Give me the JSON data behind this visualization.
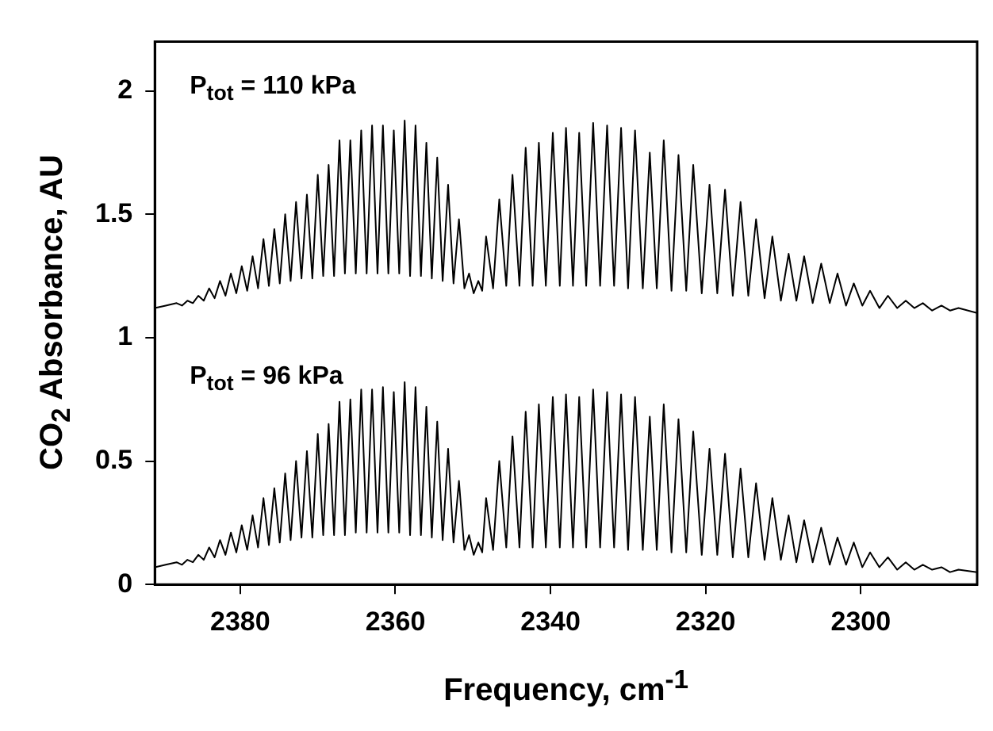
{
  "chart_data": {
    "type": "line",
    "xlabel": "Frequency, cm$^{-1}$",
    "ylabel": "CO$_{2}$ Absorbance, AU",
    "annotations": [
      "P$_{tot}$ = 110 kPa",
      "P$_{tot}$ = 96 kPa"
    ],
    "xlim": [
      2391,
      2285
    ],
    "xticks": [
      2380,
      2360,
      2340,
      2320,
      2300
    ],
    "ylim": [
      0,
      2.2
    ],
    "yticks": [
      0,
      0.5,
      1,
      1.5,
      2
    ],
    "legend": false,
    "x": [
      2391,
      2389.6,
      2388.2,
      2387.5,
      2386.8,
      2386.1,
      2385.4,
      2384.7,
      2384.0,
      2383.3,
      2382.6,
      2381.9,
      2381.2,
      2380.5,
      2379.8,
      2379.1,
      2378.4,
      2377.7,
      2377.0,
      2376.3,
      2375.6,
      2374.9,
      2374.2,
      2373.5,
      2372.8,
      2372.1,
      2371.4,
      2370.7,
      2370.0,
      2369.3,
      2368.6,
      2367.9,
      2367.2,
      2366.5,
      2365.8,
      2365.1,
      2364.4,
      2363.7,
      2363.0,
      2362.3,
      2361.6,
      2360.9,
      2360.2,
      2359.5,
      2358.8,
      2358.1,
      2357.4,
      2356.7,
      2356.0,
      2355.3,
      2354.6,
      2353.9,
      2353.2,
      2352.5,
      2351.8,
      2351.1,
      2350.5,
      2349.9,
      2349.3,
      2348.8,
      2348.3,
      2347.4,
      2346.6,
      2345.7,
      2344.9,
      2344.0,
      2343.2,
      2342.3,
      2341.5,
      2340.6,
      2339.7,
      2338.8,
      2338.0,
      2337.1,
      2336.3,
      2335.4,
      2334.5,
      2333.6,
      2332.7,
      2331.8,
      2330.9,
      2330.0,
      2329.1,
      2328.1,
      2327.2,
      2326.3,
      2325.4,
      2324.4,
      2323.5,
      2322.5,
      2321.6,
      2320.5,
      2319.5,
      2318.5,
      2317.5,
      2316.5,
      2315.5,
      2314.5,
      2313.5,
      2312.4,
      2311.4,
      2310.3,
      2309.3,
      2308.3,
      2307.3,
      2306.2,
      2305.1,
      2304.0,
      2303.0,
      2301.9,
      2300.9,
      2299.8,
      2298.8,
      2297.6,
      2296.5,
      2295.3,
      2294.2,
      2293.1,
      2292.0,
      2290.8,
      2289.6,
      2288.5,
      2287.4,
      2285
    ],
    "series": [
      {
        "color": "#000000",
        "values": [
          1.12,
          1.13,
          1.14,
          1.13,
          1.15,
          1.14,
          1.17,
          1.15,
          1.2,
          1.16,
          1.23,
          1.17,
          1.26,
          1.18,
          1.29,
          1.19,
          1.33,
          1.2,
          1.4,
          1.21,
          1.44,
          1.22,
          1.5,
          1.23,
          1.55,
          1.24,
          1.58,
          1.24,
          1.66,
          1.25,
          1.7,
          1.25,
          1.8,
          1.26,
          1.8,
          1.26,
          1.84,
          1.26,
          1.86,
          1.26,
          1.86,
          1.26,
          1.84,
          1.26,
          1.88,
          1.25,
          1.86,
          1.25,
          1.79,
          1.24,
          1.73,
          1.23,
          1.62,
          1.22,
          1.48,
          1.2,
          1.26,
          1.18,
          1.23,
          1.19,
          1.41,
          1.2,
          1.56,
          1.21,
          1.66,
          1.21,
          1.77,
          1.21,
          1.79,
          1.21,
          1.83,
          1.21,
          1.85,
          1.21,
          1.83,
          1.21,
          1.87,
          1.21,
          1.86,
          1.21,
          1.85,
          1.2,
          1.84,
          1.2,
          1.75,
          1.2,
          1.8,
          1.19,
          1.74,
          1.19,
          1.7,
          1.18,
          1.62,
          1.18,
          1.6,
          1.17,
          1.55,
          1.17,
          1.48,
          1.16,
          1.41,
          1.15,
          1.34,
          1.15,
          1.33,
          1.14,
          1.3,
          1.14,
          1.26,
          1.13,
          1.22,
          1.13,
          1.19,
          1.12,
          1.17,
          1.12,
          1.15,
          1.12,
          1.14,
          1.11,
          1.13,
          1.11,
          1.12,
          1.1
        ]
      },
      {
        "color": "#000000",
        "values": [
          0.07,
          0.08,
          0.09,
          0.08,
          0.1,
          0.09,
          0.12,
          0.1,
          0.15,
          0.11,
          0.18,
          0.12,
          0.21,
          0.13,
          0.24,
          0.14,
          0.28,
          0.15,
          0.35,
          0.16,
          0.39,
          0.17,
          0.45,
          0.18,
          0.5,
          0.19,
          0.54,
          0.19,
          0.61,
          0.2,
          0.65,
          0.2,
          0.74,
          0.2,
          0.75,
          0.21,
          0.79,
          0.21,
          0.79,
          0.21,
          0.8,
          0.21,
          0.78,
          0.21,
          0.82,
          0.2,
          0.8,
          0.2,
          0.72,
          0.19,
          0.66,
          0.18,
          0.55,
          0.17,
          0.42,
          0.14,
          0.2,
          0.12,
          0.17,
          0.13,
          0.35,
          0.14,
          0.5,
          0.15,
          0.6,
          0.15,
          0.7,
          0.15,
          0.73,
          0.15,
          0.76,
          0.15,
          0.77,
          0.15,
          0.76,
          0.15,
          0.79,
          0.15,
          0.78,
          0.15,
          0.77,
          0.14,
          0.76,
          0.14,
          0.68,
          0.14,
          0.73,
          0.13,
          0.67,
          0.13,
          0.62,
          0.12,
          0.55,
          0.12,
          0.53,
          0.11,
          0.47,
          0.11,
          0.41,
          0.1,
          0.35,
          0.1,
          0.28,
          0.09,
          0.26,
          0.09,
          0.23,
          0.08,
          0.19,
          0.08,
          0.17,
          0.07,
          0.13,
          0.07,
          0.11,
          0.06,
          0.09,
          0.06,
          0.08,
          0.06,
          0.07,
          0.05,
          0.06,
          0.05
        ]
      }
    ]
  }
}
